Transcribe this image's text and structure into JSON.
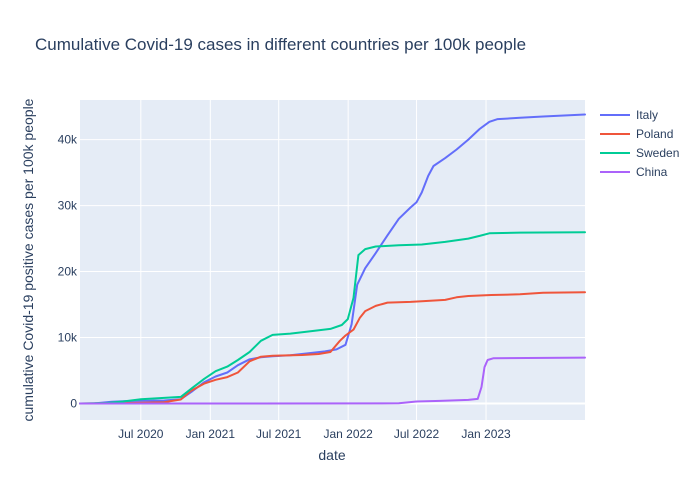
{
  "chart_data": {
    "type": "line",
    "title": "Cumulative Covid-19 cases in different countries per 100k people",
    "xlabel": "date",
    "ylabel": "cumulative Covid-19 positive cases per 100k people",
    "xlim": [
      "2020-01-22",
      "2023-09-20"
    ],
    "ylim": [
      -2500,
      46000
    ],
    "x_ticks": [
      {
        "date": "2020-07-01",
        "label": "Jul 2020"
      },
      {
        "date": "2021-01-01",
        "label": "Jan 2021"
      },
      {
        "date": "2021-07-01",
        "label": "Jul 2021"
      },
      {
        "date": "2022-01-01",
        "label": "Jan 2022"
      },
      {
        "date": "2022-07-01",
        "label": "Jul 2022"
      },
      {
        "date": "2023-01-01",
        "label": "Jan 2023"
      }
    ],
    "y_ticks": [
      {
        "value": 0,
        "label": "0"
      },
      {
        "value": 10000,
        "label": "10k"
      },
      {
        "value": 20000,
        "label": "20k"
      },
      {
        "value": 30000,
        "label": "30k"
      },
      {
        "value": 40000,
        "label": "40k"
      }
    ],
    "grid": true,
    "legend_position": "top-right",
    "background_color": "#e5ecf6",
    "series": [
      {
        "name": "Italy",
        "color": "#636efa",
        "points": [
          [
            "2020-01-22",
            0
          ],
          [
            "2020-03-01",
            20
          ],
          [
            "2020-04-15",
            270
          ],
          [
            "2020-06-01",
            385
          ],
          [
            "2020-09-01",
            450
          ],
          [
            "2020-10-15",
            650
          ],
          [
            "2020-11-15",
            1900
          ],
          [
            "2020-12-15",
            3200
          ],
          [
            "2021-01-15",
            4100
          ],
          [
            "2021-02-15",
            4700
          ],
          [
            "2021-03-15",
            5800
          ],
          [
            "2021-04-15",
            6700
          ],
          [
            "2021-05-15",
            7000
          ],
          [
            "2021-06-15",
            7150
          ],
          [
            "2021-08-01",
            7300
          ],
          [
            "2021-09-15",
            7600
          ],
          [
            "2021-11-01",
            7900
          ],
          [
            "2021-12-01",
            8200
          ],
          [
            "2021-12-25",
            8900
          ],
          [
            "2022-01-10",
            12000
          ],
          [
            "2022-01-25",
            18000
          ],
          [
            "2022-02-15",
            20500
          ],
          [
            "2022-03-15",
            22800
          ],
          [
            "2022-04-15",
            25500
          ],
          [
            "2022-05-15",
            28000
          ],
          [
            "2022-06-15",
            29700
          ],
          [
            "2022-07-01",
            30500
          ],
          [
            "2022-07-15",
            32000
          ],
          [
            "2022-08-01",
            34500
          ],
          [
            "2022-08-15",
            36000
          ],
          [
            "2022-09-15",
            37200
          ],
          [
            "2022-10-15",
            38500
          ],
          [
            "2022-11-15",
            40000
          ],
          [
            "2022-12-15",
            41600
          ],
          [
            "2023-01-10",
            42700
          ],
          [
            "2023-02-01",
            43100
          ],
          [
            "2023-04-01",
            43300
          ],
          [
            "2023-06-01",
            43500
          ],
          [
            "2023-09-20",
            43800
          ]
        ]
      },
      {
        "name": "Poland",
        "color": "#ef553b",
        "points": [
          [
            "2020-01-22",
            0
          ],
          [
            "2020-04-15",
            30
          ],
          [
            "2020-07-01",
            100
          ],
          [
            "2020-09-01",
            200
          ],
          [
            "2020-10-15",
            600
          ],
          [
            "2020-11-10",
            1900
          ],
          [
            "2020-12-15",
            3000
          ],
          [
            "2021-01-15",
            3600
          ],
          [
            "2021-02-15",
            4000
          ],
          [
            "2021-03-15",
            4700
          ],
          [
            "2021-04-15",
            6400
          ],
          [
            "2021-05-15",
            7100
          ],
          [
            "2021-06-15",
            7250
          ],
          [
            "2021-09-01",
            7350
          ],
          [
            "2021-10-15",
            7500
          ],
          [
            "2021-11-15",
            7800
          ],
          [
            "2021-12-10",
            9500
          ],
          [
            "2021-12-25",
            10300
          ],
          [
            "2022-01-15",
            11200
          ],
          [
            "2022-02-01",
            13000
          ],
          [
            "2022-02-15",
            14000
          ],
          [
            "2022-03-15",
            14800
          ],
          [
            "2022-04-15",
            15300
          ],
          [
            "2022-06-15",
            15400
          ],
          [
            "2022-07-15",
            15500
          ],
          [
            "2022-09-15",
            15700
          ],
          [
            "2022-10-15",
            16100
          ],
          [
            "2022-11-15",
            16300
          ],
          [
            "2023-01-15",
            16450
          ],
          [
            "2023-04-01",
            16550
          ],
          [
            "2023-06-01",
            16800
          ],
          [
            "2023-09-20",
            16850
          ]
        ]
      },
      {
        "name": "Sweden",
        "color": "#00cc96",
        "points": [
          [
            "2020-01-22",
            0
          ],
          [
            "2020-04-01",
            70
          ],
          [
            "2020-05-15",
            300
          ],
          [
            "2020-07-01",
            650
          ],
          [
            "2020-08-15",
            800
          ],
          [
            "2020-10-15",
            1000
          ],
          [
            "2020-11-15",
            2400
          ],
          [
            "2020-12-15",
            3700
          ],
          [
            "2021-01-15",
            4900
          ],
          [
            "2021-02-15",
            5600
          ],
          [
            "2021-03-15",
            6600
          ],
          [
            "2021-04-15",
            7800
          ],
          [
            "2021-05-15",
            9500
          ],
          [
            "2021-06-15",
            10400
          ],
          [
            "2021-08-01",
            10600
          ],
          [
            "2021-09-15",
            10900
          ],
          [
            "2021-11-15",
            11300
          ],
          [
            "2021-12-15",
            11900
          ],
          [
            "2021-12-31",
            12800
          ],
          [
            "2022-01-15",
            16000
          ],
          [
            "2022-01-28",
            22500
          ],
          [
            "2022-02-15",
            23400
          ],
          [
            "2022-03-15",
            23800
          ],
          [
            "2022-05-15",
            24000
          ],
          [
            "2022-07-15",
            24100
          ],
          [
            "2022-09-15",
            24500
          ],
          [
            "2022-11-15",
            25000
          ],
          [
            "2022-12-15",
            25400
          ],
          [
            "2023-01-10",
            25800
          ],
          [
            "2023-04-01",
            25900
          ],
          [
            "2023-09-20",
            25950
          ]
        ]
      },
      {
        "name": "China",
        "color": "#ab63fa",
        "points": [
          [
            "2020-01-22",
            0
          ],
          [
            "2020-03-01",
            5
          ],
          [
            "2022-04-01",
            10
          ],
          [
            "2022-05-15",
            50
          ],
          [
            "2022-07-01",
            300
          ],
          [
            "2022-09-01",
            400
          ],
          [
            "2022-11-15",
            550
          ],
          [
            "2022-12-10",
            700
          ],
          [
            "2022-12-20",
            2500
          ],
          [
            "2022-12-28",
            5500
          ],
          [
            "2023-01-05",
            6600
          ],
          [
            "2023-01-20",
            6850
          ],
          [
            "2023-09-20",
            6950
          ]
        ]
      }
    ]
  }
}
